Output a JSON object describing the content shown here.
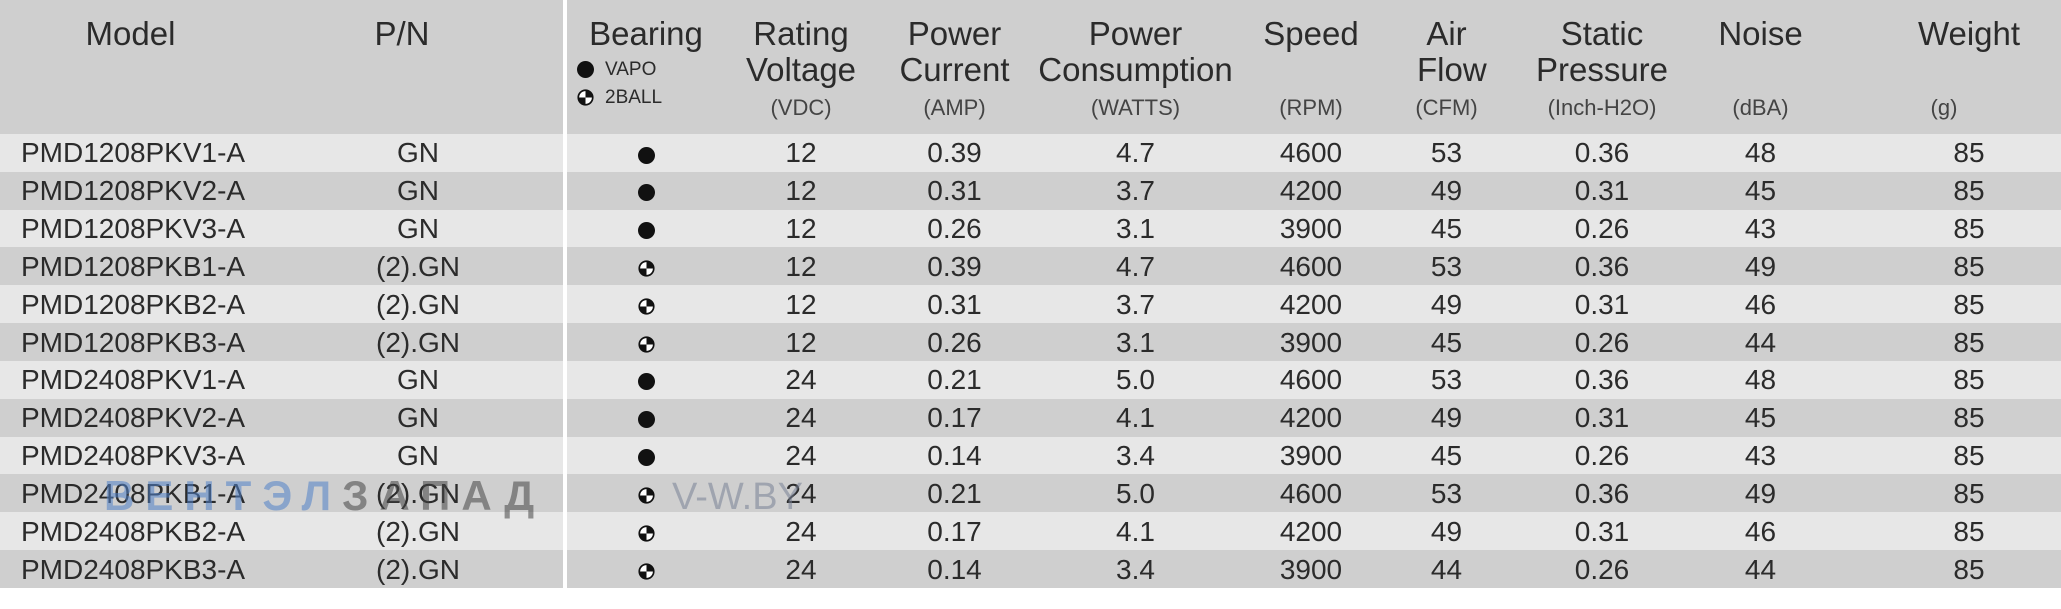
{
  "headers": {
    "model": "Model",
    "pn": "P/N",
    "bearing": "Bearing",
    "bearing_legend": [
      {
        "symbol": "dot-icon",
        "label": "VAPO"
      },
      {
        "symbol": "two-ball-icon",
        "label": "2BALL"
      }
    ],
    "voltage": {
      "label": "Rating Voltage",
      "unit": "(VDC)"
    },
    "current": {
      "label": "Power Current",
      "unit": "(AMP)"
    },
    "consumption": {
      "label": "Power Consumption",
      "unit": "(WATTS)"
    },
    "speed": {
      "label": "Speed",
      "unit": "(RPM)"
    },
    "airflow": {
      "label": "Air Flow",
      "unit": "(CFM)"
    },
    "pressure": {
      "label": "Static Pressure",
      "unit": "(Inch-H2O)"
    },
    "noise": {
      "label": "Noise",
      "unit": "(dBA)"
    },
    "weight": {
      "label": "Weight",
      "unit": "(g)"
    }
  },
  "rows": [
    {
      "model": "PMD1208PKV1-A",
      "pn": "GN",
      "bearing": "VAPO",
      "voltage": "12",
      "current": "0.39",
      "watts": "4.7",
      "rpm": "4600",
      "cfm": "53",
      "pressure": "0.36",
      "noise": "48",
      "weight": "85"
    },
    {
      "model": "PMD1208PKV2-A",
      "pn": "GN",
      "bearing": "VAPO",
      "voltage": "12",
      "current": "0.31",
      "watts": "3.7",
      "rpm": "4200",
      "cfm": "49",
      "pressure": "0.31",
      "noise": "45",
      "weight": "85"
    },
    {
      "model": "PMD1208PKV3-A",
      "pn": "GN",
      "bearing": "VAPO",
      "voltage": "12",
      "current": "0.26",
      "watts": "3.1",
      "rpm": "3900",
      "cfm": "45",
      "pressure": "0.26",
      "noise": "43",
      "weight": "85"
    },
    {
      "model": "PMD1208PKB1-A",
      "pn": "(2).GN",
      "bearing": "2BALL",
      "voltage": "12",
      "current": "0.39",
      "watts": "4.7",
      "rpm": "4600",
      "cfm": "53",
      "pressure": "0.36",
      "noise": "49",
      "weight": "85"
    },
    {
      "model": "PMD1208PKB2-A",
      "pn": "(2).GN",
      "bearing": "2BALL",
      "voltage": "12",
      "current": "0.31",
      "watts": "3.7",
      "rpm": "4200",
      "cfm": "49",
      "pressure": "0.31",
      "noise": "46",
      "weight": "85"
    },
    {
      "model": "PMD1208PKB3-A",
      "pn": "(2).GN",
      "bearing": "2BALL",
      "voltage": "12",
      "current": "0.26",
      "watts": "3.1",
      "rpm": "3900",
      "cfm": "45",
      "pressure": "0.26",
      "noise": "44",
      "weight": "85"
    },
    {
      "model": "PMD2408PKV1-A",
      "pn": "GN",
      "bearing": "VAPO",
      "voltage": "24",
      "current": "0.21",
      "watts": "5.0",
      "rpm": "4600",
      "cfm": "53",
      "pressure": "0.36",
      "noise": "48",
      "weight": "85"
    },
    {
      "model": "PMD2408PKV2-A",
      "pn": "GN",
      "bearing": "VAPO",
      "voltage": "24",
      "current": "0.17",
      "watts": "4.1",
      "rpm": "4200",
      "cfm": "49",
      "pressure": "0.31",
      "noise": "45",
      "weight": "85"
    },
    {
      "model": "PMD2408PKV3-A",
      "pn": "GN",
      "bearing": "VAPO",
      "voltage": "24",
      "current": "0.14",
      "watts": "3.4",
      "rpm": "3900",
      "cfm": "45",
      "pressure": "0.26",
      "noise": "43",
      "weight": "85"
    },
    {
      "model": "PMD2408PKB1-A",
      "pn": "(2).GN",
      "bearing": "2BALL",
      "voltage": "24",
      "current": "0.21",
      "watts": "5.0",
      "rpm": "4600",
      "cfm": "53",
      "pressure": "0.36",
      "noise": "49",
      "weight": "85"
    },
    {
      "model": "PMD2408PKB2-A",
      "pn": "(2).GN",
      "bearing": "2BALL",
      "voltage": "24",
      "current": "0.17",
      "watts": "4.1",
      "rpm": "4200",
      "cfm": "49",
      "pressure": "0.31",
      "noise": "46",
      "weight": "85"
    },
    {
      "model": "PMD2408PKB3-A",
      "pn": "(2).GN",
      "bearing": "2BALL",
      "voltage": "24",
      "current": "0.14",
      "watts": "3.4",
      "rpm": "3900",
      "cfm": "44",
      "pressure": "0.26",
      "noise": "44",
      "weight": "85"
    }
  ],
  "watermark": {
    "brand_part1": "ВЕНТЭЛ",
    "brand_part2": "ЗАПАД",
    "url": "V-W.BY"
  }
}
